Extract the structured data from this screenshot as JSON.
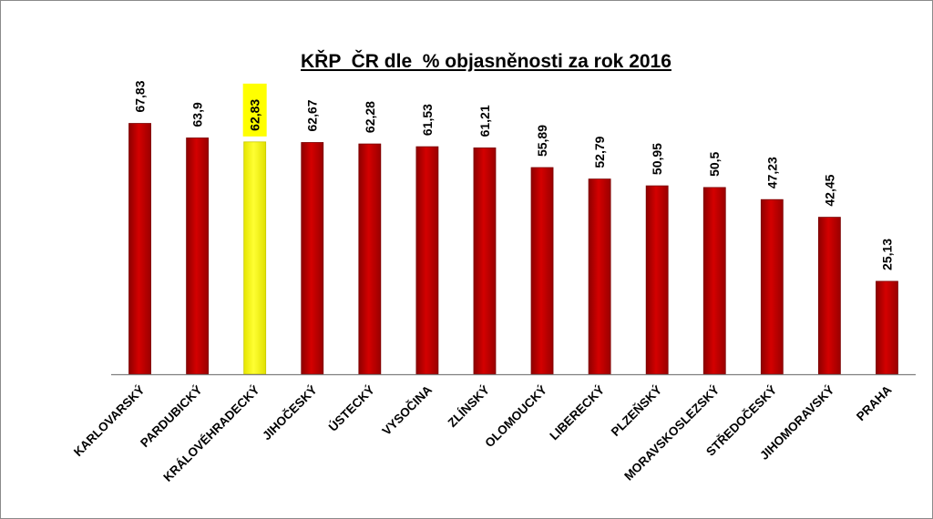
{
  "chart_data": {
    "type": "bar",
    "title": "KŘP  ČR dle  % objasněnosti za rok 2016",
    "xlabel": "",
    "ylabel": "",
    "ylim": [
      0,
      70
    ],
    "grid": false,
    "legend": "none",
    "categories": [
      "KARLOVARSKÝ",
      "PARDUBICKÝ",
      "KRÁLOVÉHRADECKÝ",
      "JIHOČESKÝ",
      "ÚSTECKÝ",
      "VYSOČINA",
      "ZLÍNSKÝ",
      "OLOMOUCKÝ",
      "LIBERECKÝ",
      "PLZEŇSKÝ",
      "MORAVSKOSLEZSKÝ",
      "STŘEDOČESKÝ",
      "JIHOMORAVSKÝ",
      "PRAHA"
    ],
    "values": [
      67.83,
      63.9,
      62.83,
      62.67,
      62.28,
      61.53,
      61.21,
      55.89,
      52.79,
      50.95,
      50.5,
      47.23,
      42.45,
      25.13
    ],
    "value_labels": [
      "67,83",
      "63,9",
      "62,83",
      "62,67",
      "62,28",
      "61,53",
      "61,21",
      "55,89",
      "52,79",
      "50,95",
      "50,5",
      "47,23",
      "42,45",
      "25,13"
    ],
    "highlight_index": 2,
    "colors": {
      "bar": "#c00000",
      "highlight": "#ffff00",
      "highlight_label_bg": "#ffff00",
      "axis": "#7f7f7f"
    }
  }
}
